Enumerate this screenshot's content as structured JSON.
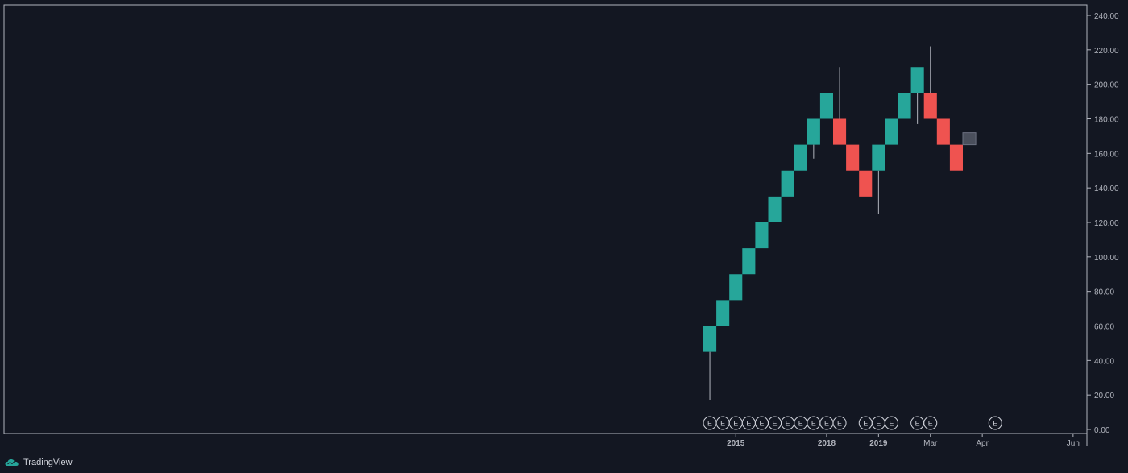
{
  "brand": {
    "name": "TradingView",
    "logo_icon": "tradingview-cloud-icon"
  },
  "colors": {
    "background": "#131722",
    "up": "#26a69a",
    "down": "#ef5350",
    "pending": "#4a4f5c",
    "wick": "#b2b5be",
    "axis_text": "#b2b5be",
    "border": "#b2b5be",
    "earnings_stroke": "#d1d4dc"
  },
  "chart_data": {
    "type": "renko",
    "title": "",
    "xlabel": "",
    "ylabel": "",
    "ylim": [
      0,
      240
    ],
    "y_ticks": [
      0,
      20,
      40,
      60,
      80,
      100,
      120,
      140,
      160,
      180,
      200,
      220,
      240
    ],
    "y_tick_labels": [
      "0.00",
      "20.00",
      "40.00",
      "60.00",
      "80.00",
      "100.00",
      "120.00",
      "140.00",
      "160.00",
      "180.00",
      "200.00",
      "220.00",
      "240.00"
    ],
    "box_size": 15,
    "x_tick_labels": [
      {
        "label": "2015",
        "bold": true,
        "at_brick": 2
      },
      {
        "label": "2018",
        "bold": true,
        "at_brick": 9
      },
      {
        "label": "2019",
        "bold": true,
        "at_brick": 13
      },
      {
        "label": "Mar",
        "bold": false,
        "at_brick": 17
      },
      {
        "label": "Apr",
        "bold": false,
        "at_brick": 21
      },
      {
        "label": "Jun",
        "bold": false,
        "at_brick": 28
      }
    ],
    "bricks": [
      {
        "open": 45,
        "close": 60,
        "direction": "up",
        "wick_low": 17
      },
      {
        "open": 60,
        "close": 75,
        "direction": "up"
      },
      {
        "open": 75,
        "close": 90,
        "direction": "up"
      },
      {
        "open": 90,
        "close": 105,
        "direction": "up"
      },
      {
        "open": 105,
        "close": 120,
        "direction": "up"
      },
      {
        "open": 120,
        "close": 135,
        "direction": "up"
      },
      {
        "open": 135,
        "close": 150,
        "direction": "up"
      },
      {
        "open": 150,
        "close": 165,
        "direction": "up"
      },
      {
        "open": 165,
        "close": 180,
        "direction": "up",
        "wick_low": 157
      },
      {
        "open": 180,
        "close": 195,
        "direction": "up"
      },
      {
        "open": 180,
        "close": 165,
        "direction": "down",
        "wick_high": 210
      },
      {
        "open": 165,
        "close": 150,
        "direction": "down"
      },
      {
        "open": 150,
        "close": 135,
        "direction": "down"
      },
      {
        "open": 150,
        "close": 165,
        "direction": "up",
        "wick_low": 125
      },
      {
        "open": 165,
        "close": 180,
        "direction": "up"
      },
      {
        "open": 180,
        "close": 195,
        "direction": "up"
      },
      {
        "open": 195,
        "close": 210,
        "direction": "up",
        "wick_low": 177
      },
      {
        "open": 195,
        "close": 180,
        "direction": "down",
        "wick_high": 222
      },
      {
        "open": 180,
        "close": 165,
        "direction": "down"
      },
      {
        "open": 165,
        "close": 150,
        "direction": "down"
      },
      {
        "open": 165,
        "close": 172,
        "direction": "pending"
      }
    ],
    "earnings_markers": {
      "label": "E",
      "at_brick": [
        0,
        1,
        2,
        3,
        4,
        5,
        6,
        7,
        8,
        9,
        10,
        12,
        13,
        14,
        16,
        17,
        22
      ]
    }
  }
}
